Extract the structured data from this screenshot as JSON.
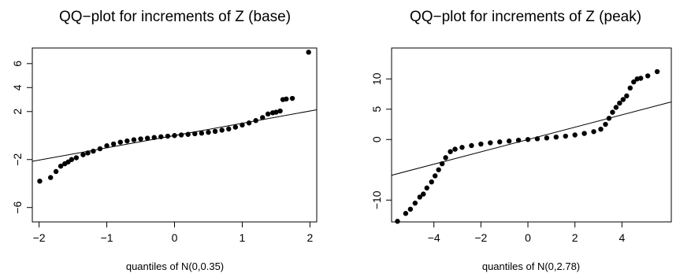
{
  "chart_data": [
    {
      "type": "scatter",
      "title": "QQ−plot for increments of Z (base)",
      "xlabel": "quantiles of N(0,0.35)",
      "ylabel": "",
      "xlim": [
        -2.1,
        2.1
      ],
      "ylim": [
        -7.2,
        7.3
      ],
      "xticks": [
        -2,
        -1,
        0,
        1,
        2
      ],
      "xtick_labels": [
        "−2",
        "−1",
        "0",
        "1",
        "2"
      ],
      "yticks": [
        -6,
        -2,
        2,
        4,
        6
      ],
      "ytick_labels": [
        "−6",
        "−2",
        "2",
        "4",
        "6"
      ],
      "grid": false,
      "marker_color": "#000000",
      "reference_line": {
        "x": [
          -2.1,
          2.1
        ],
        "y": [
          -2.15,
          2.15
        ]
      },
      "series": [
        {
          "points": [
            [
              -1.99,
              -3.8
            ],
            [
              -1.83,
              -3.5
            ],
            [
              -1.75,
              -3.0
            ],
            [
              -1.68,
              -2.55
            ],
            [
              -1.62,
              -2.35
            ],
            [
              -1.57,
              -2.2
            ],
            [
              -1.52,
              -2.0
            ],
            [
              -1.45,
              -1.85
            ],
            [
              -1.35,
              -1.6
            ],
            [
              -1.28,
              -1.45
            ],
            [
              -1.2,
              -1.3
            ],
            [
              -1.1,
              -1.1
            ],
            [
              -1.0,
              -0.85
            ],
            [
              -0.9,
              -0.7
            ],
            [
              -0.8,
              -0.55
            ],
            [
              -0.7,
              -0.45
            ],
            [
              -0.6,
              -0.35
            ],
            [
              -0.5,
              -0.28
            ],
            [
              -0.4,
              -0.22
            ],
            [
              -0.3,
              -0.16
            ],
            [
              -0.2,
              -0.1
            ],
            [
              -0.1,
              -0.05
            ],
            [
              0.0,
              0.0
            ],
            [
              0.1,
              0.05
            ],
            [
              0.2,
              0.1
            ],
            [
              0.3,
              0.15
            ],
            [
              0.4,
              0.2
            ],
            [
              0.5,
              0.27
            ],
            [
              0.6,
              0.35
            ],
            [
              0.7,
              0.45
            ],
            [
              0.8,
              0.55
            ],
            [
              0.9,
              0.7
            ],
            [
              1.0,
              0.88
            ],
            [
              1.1,
              1.05
            ],
            [
              1.2,
              1.25
            ],
            [
              1.3,
              1.5
            ],
            [
              1.38,
              1.8
            ],
            [
              1.45,
              1.9
            ],
            [
              1.5,
              1.95
            ],
            [
              1.56,
              2.05
            ],
            [
              1.6,
              3.0
            ],
            [
              1.65,
              3.05
            ],
            [
              1.74,
              3.1
            ],
            [
              1.98,
              6.95
            ]
          ]
        }
      ]
    },
    {
      "type": "scatter",
      "title": "QQ−plot for increments of Z (peak)",
      "xlabel": "quantiles of N(0,2.78)",
      "ylabel": "",
      "xlim": [
        -5.8,
        6.1
      ],
      "ylim": [
        -13.6,
        15.1
      ],
      "xticks": [
        -4,
        -2,
        0,
        2,
        4
      ],
      "xtick_labels": [
        "−4",
        "−2",
        "0",
        "2",
        "4"
      ],
      "yticks": [
        -10,
        0,
        5,
        10
      ],
      "ytick_labels": [
        "−10",
        "0",
        "5",
        "10"
      ],
      "grid": false,
      "marker_color": "#000000",
      "reference_line": {
        "x": [
          -5.8,
          6.1
        ],
        "y": [
          -5.9,
          6.2
        ]
      },
      "series": [
        {
          "points": [
            [
              -5.55,
              -13.5
            ],
            [
              -5.2,
              -12.2
            ],
            [
              -5.0,
              -11.5
            ],
            [
              -4.8,
              -10.5
            ],
            [
              -4.6,
              -9.5
            ],
            [
              -4.45,
              -9.0
            ],
            [
              -4.3,
              -8.0
            ],
            [
              -4.1,
              -7.0
            ],
            [
              -3.95,
              -6.0
            ],
            [
              -3.8,
              -5.0
            ],
            [
              -3.65,
              -4.0
            ],
            [
              -3.5,
              -3.0
            ],
            [
              -3.3,
              -2.0
            ],
            [
              -3.1,
              -1.6
            ],
            [
              -2.8,
              -1.3
            ],
            [
              -2.4,
              -1.0
            ],
            [
              -2.0,
              -0.75
            ],
            [
              -1.6,
              -0.55
            ],
            [
              -1.2,
              -0.4
            ],
            [
              -0.8,
              -0.25
            ],
            [
              -0.4,
              -0.12
            ],
            [
              0.0,
              0.0
            ],
            [
              0.4,
              0.12
            ],
            [
              0.8,
              0.25
            ],
            [
              1.2,
              0.4
            ],
            [
              1.6,
              0.55
            ],
            [
              2.0,
              0.75
            ],
            [
              2.4,
              1.0
            ],
            [
              2.8,
              1.3
            ],
            [
              3.1,
              1.7
            ],
            [
              3.3,
              2.5
            ],
            [
              3.45,
              3.5
            ],
            [
              3.6,
              4.5
            ],
            [
              3.75,
              5.3
            ],
            [
              3.9,
              6.0
            ],
            [
              4.05,
              6.6
            ],
            [
              4.2,
              7.2
            ],
            [
              4.35,
              8.5
            ],
            [
              4.5,
              9.5
            ],
            [
              4.65,
              10.0
            ],
            [
              4.8,
              10.1
            ],
            [
              5.1,
              10.5
            ],
            [
              5.5,
              11.2
            ]
          ]
        }
      ]
    }
  ]
}
